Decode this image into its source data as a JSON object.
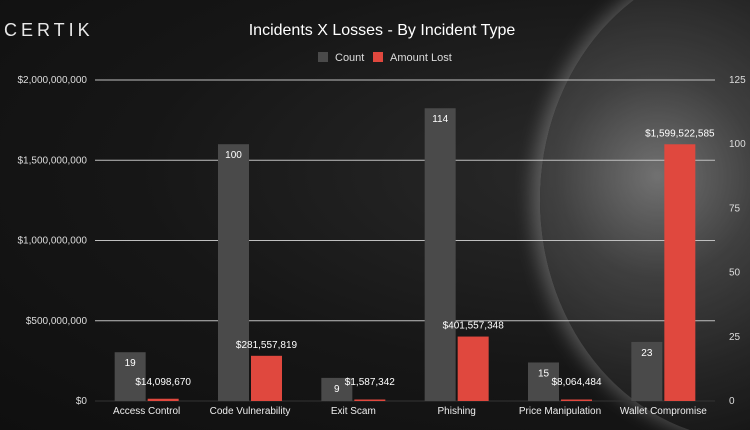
{
  "logo": "CERTIK",
  "colors": {
    "count": "#4a4a4a",
    "amount": "#e0483e",
    "grid": "#bfbfbf"
  },
  "chart_data": {
    "type": "bar",
    "title": "Incidents X Losses - By Incident Type",
    "categories": [
      "Access Control",
      "Code Vulnerability",
      "Exit Scam",
      "Phishing",
      "Price Manipulation",
      "Wallet Compromise"
    ],
    "series": [
      {
        "name": "Count",
        "axis": "right",
        "values": [
          19,
          100,
          9,
          114,
          15,
          23
        ],
        "labels": [
          "19",
          "100",
          "9",
          "114",
          "15",
          "23"
        ]
      },
      {
        "name": "Amount Lost",
        "axis": "left",
        "values": [
          14098670,
          281557819,
          1587342,
          401557348,
          8064484,
          1599522585
        ],
        "labels": [
          "$14,098,670",
          "$281,557,819",
          "$1,587,342",
          "$401,557,348",
          "$8,064,484",
          "$1,599,522,585"
        ]
      }
    ],
    "y_left": {
      "ylim": [
        0,
        2000000000
      ],
      "ticks": [
        "$0",
        "$500,000,000",
        "$1,000,000,000",
        "$1,500,000,000",
        "$2,000,000,000"
      ]
    },
    "y_right": {
      "ylim": [
        0,
        125
      ],
      "ticks": [
        "0",
        "25",
        "50",
        "75",
        "100",
        "125"
      ]
    },
    "legend": "top",
    "grid": true
  }
}
